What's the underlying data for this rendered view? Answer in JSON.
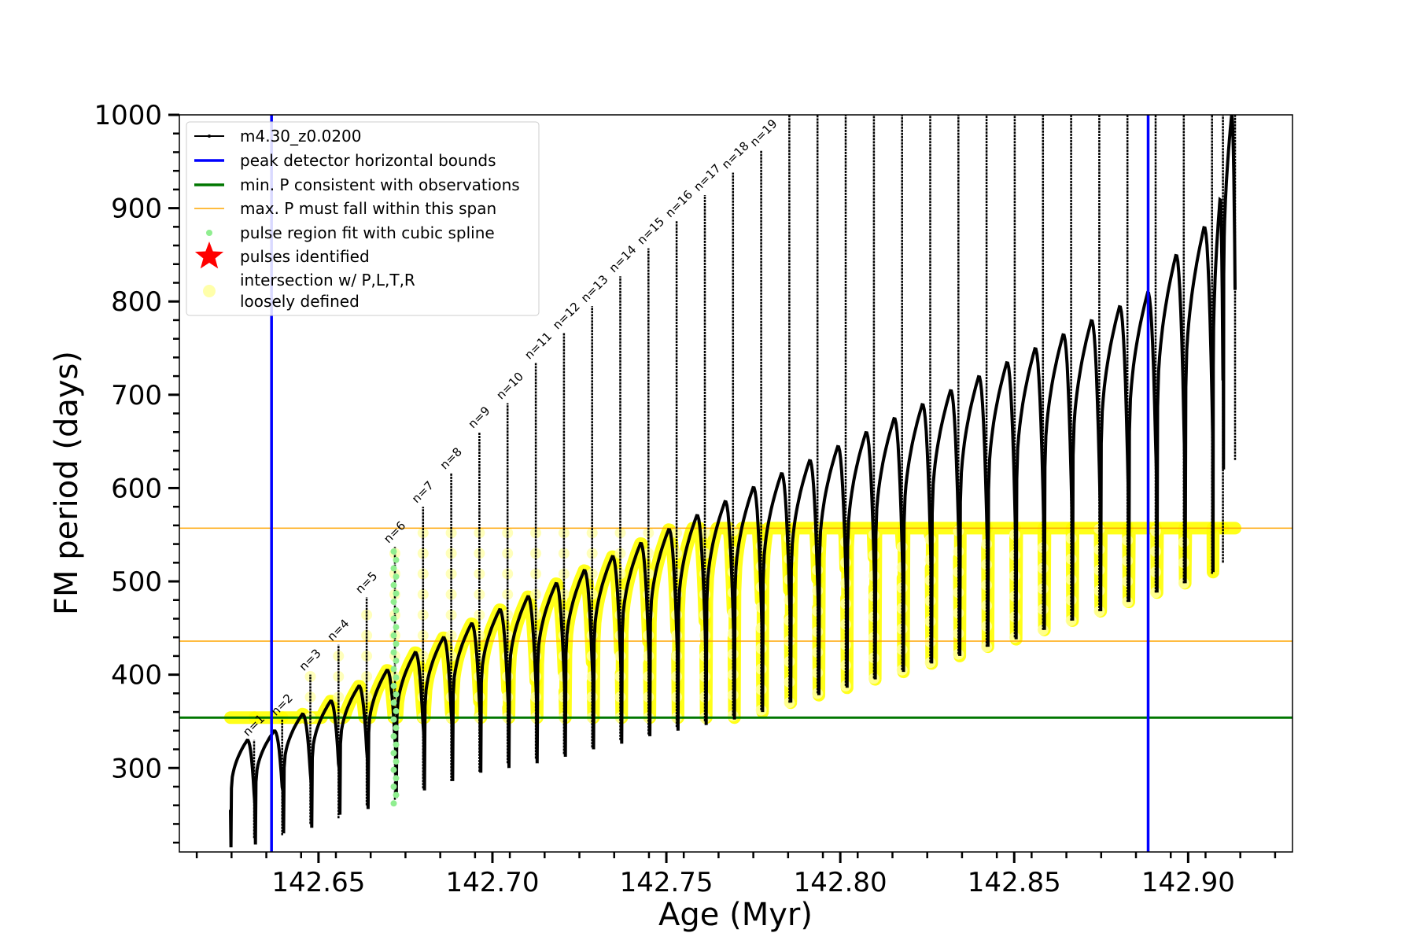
{
  "chart_data": {
    "type": "line",
    "title": "",
    "xlabel": "Age (Myr)",
    "ylabel": "FM period (days)",
    "xlim": [
      142.61,
      142.93
    ],
    "ylim": [
      210,
      1000
    ],
    "x_ticks": [
      "142.65",
      "142.70",
      "142.75",
      "142.80",
      "142.85",
      "142.90"
    ],
    "x_tick_values": [
      142.65,
      142.7,
      142.75,
      142.8,
      142.85,
      142.9
    ],
    "y_ticks": [
      "300",
      "400",
      "500",
      "600",
      "700",
      "800",
      "900",
      "1000"
    ],
    "y_tick_values": [
      300,
      400,
      500,
      600,
      700,
      800,
      900,
      1000
    ],
    "grid": false,
    "legend_position": "upper-left",
    "legend": [
      {
        "label": "m4.30_z0.0200",
        "kind": "line-marker",
        "color": "#000000"
      },
      {
        "label": "peak detector horizontal bounds",
        "kind": "line",
        "color": "#0000ff"
      },
      {
        "label": "min. P consistent with observations",
        "kind": "line",
        "color": "#007700"
      },
      {
        "label": "max. P must fall within this span",
        "kind": "line",
        "color": "#ffa500"
      },
      {
        "label": "pulse region fit with cubic spline",
        "kind": "dot",
        "color": "#90ee90"
      },
      {
        "label": "pulses identified",
        "kind": "star",
        "color": "#ff0000"
      },
      {
        "label": "intersection w/ P,L,T,R",
        "label2": "loosely defined",
        "kind": "dot",
        "color": "#ffffaa"
      }
    ],
    "vertical_lines": [
      {
        "x": 142.6365,
        "color": "#0000ff"
      },
      {
        "x": 142.8885,
        "color": "#0000ff"
      }
    ],
    "horizontal_lines": [
      {
        "y": 354,
        "color": "#007700",
        "width": 3
      },
      {
        "y": 557,
        "color": "#ffa500",
        "width": 1.5
      },
      {
        "y": 436,
        "color": "#ffa500",
        "width": 1.5
      }
    ],
    "yellow_band": {
      "min": 354,
      "max": 557,
      "color": "#ffff00"
    },
    "green_highlight_pulse": 5,
    "pulse_labels": [
      "n=1",
      "n=2",
      "n=3",
      "n=4",
      "n=5",
      "n=6",
      "n=7",
      "n=8",
      "n=9",
      "n=10",
      "n=11",
      "n=12",
      "n=13",
      "n=14",
      "n=15",
      "n=16",
      "n=17",
      "n=18",
      "n=19"
    ],
    "pulses": [
      {
        "x": 142.6247,
        "peak": 330,
        "min": 215,
        "spike": 330
      },
      {
        "x": 142.6317,
        "peak": 340,
        "min": 218,
        "spike": 352
      },
      {
        "x": 142.6398,
        "peak": 358,
        "min": 230,
        "spike": 400
      },
      {
        "x": 142.6479,
        "peak": 372,
        "min": 236,
        "spike": 432
      },
      {
        "x": 142.656,
        "peak": 388,
        "min": 250,
        "spike": 483
      },
      {
        "x": 142.6641,
        "peak": 405,
        "min": 256,
        "spike": 537
      },
      {
        "x": 142.6722,
        "peak": 424,
        "min": 268,
        "spike": 580
      },
      {
        "x": 142.6803,
        "peak": 440,
        "min": 276,
        "spike": 616
      },
      {
        "x": 142.6884,
        "peak": 455,
        "min": 286,
        "spike": 660
      },
      {
        "x": 142.6965,
        "peak": 470,
        "min": 295,
        "spike": 691
      },
      {
        "x": 142.7046,
        "peak": 484,
        "min": 300,
        "spike": 734
      },
      {
        "x": 142.7127,
        "peak": 498,
        "min": 305,
        "spike": 766
      },
      {
        "x": 142.7208,
        "peak": 512,
        "min": 312,
        "spike": 795
      },
      {
        "x": 142.7289,
        "peak": 527,
        "min": 320,
        "spike": 827
      },
      {
        "x": 142.737,
        "peak": 541,
        "min": 326,
        "spike": 857
      },
      {
        "x": 142.7451,
        "peak": 556,
        "min": 334,
        "spike": 886
      },
      {
        "x": 142.7532,
        "peak": 571,
        "min": 340,
        "spike": 914
      },
      {
        "x": 142.7613,
        "peak": 586,
        "min": 346,
        "spike": 938
      },
      {
        "x": 142.7694,
        "peak": 601,
        "min": 352,
        "spike": 962
      },
      {
        "x": 142.7775,
        "peak": 616,
        "min": 360,
        "spike": 1000
      },
      {
        "x": 142.7856,
        "peak": 630,
        "min": 370,
        "spike": 1000
      },
      {
        "x": 142.7937,
        "peak": 645,
        "min": 378,
        "spike": 1000
      },
      {
        "x": 142.8018,
        "peak": 660,
        "min": 386,
        "spike": 1000
      },
      {
        "x": 142.8099,
        "peak": 675,
        "min": 395,
        "spike": 1000
      },
      {
        "x": 142.818,
        "peak": 690,
        "min": 403,
        "spike": 1000
      },
      {
        "x": 142.8261,
        "peak": 705,
        "min": 412,
        "spike": 1000
      },
      {
        "x": 142.8342,
        "peak": 720,
        "min": 420,
        "spike": 1000
      },
      {
        "x": 142.8423,
        "peak": 735,
        "min": 430,
        "spike": 1000
      },
      {
        "x": 142.8504,
        "peak": 750,
        "min": 438,
        "spike": 1000
      },
      {
        "x": 142.8585,
        "peak": 765,
        "min": 448,
        "spike": 1000
      },
      {
        "x": 142.8666,
        "peak": 780,
        "min": 458,
        "spike": 1000
      },
      {
        "x": 142.8747,
        "peak": 795,
        "min": 468,
        "spike": 1000
      },
      {
        "x": 142.8828,
        "peak": 810,
        "min": 478,
        "spike": 1000
      },
      {
        "x": 142.8909,
        "peak": 850,
        "min": 488,
        "spike": 1000
      },
      {
        "x": 142.899,
        "peak": 880,
        "min": 498,
        "spike": 1000
      },
      {
        "x": 142.9071,
        "peak": 910,
        "min": 510,
        "spike": 1000
      },
      {
        "x": 142.9101,
        "peak": 1000,
        "min": 620,
        "spike": 1000
      }
    ]
  }
}
